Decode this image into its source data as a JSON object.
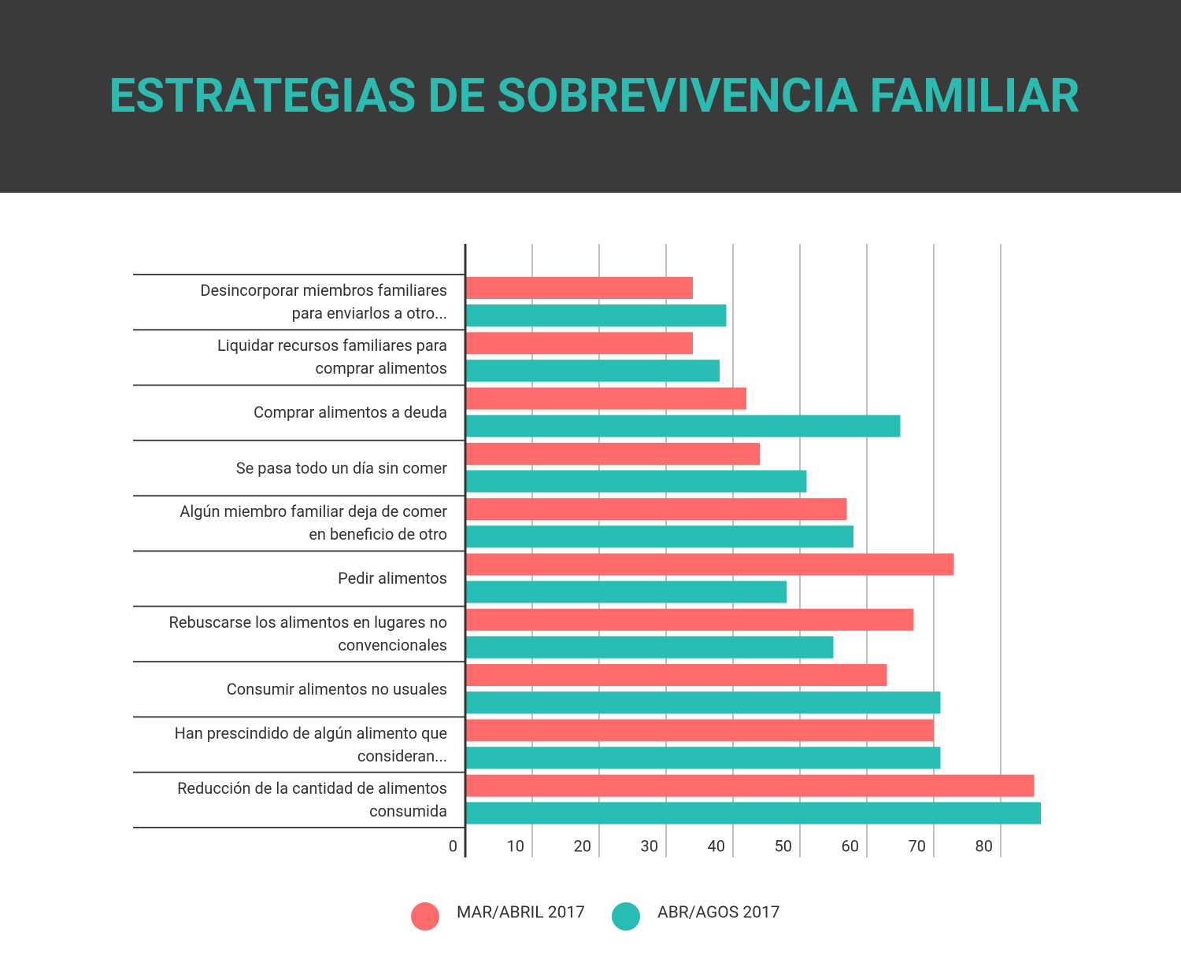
{
  "chart_data": {
    "type": "barh",
    "title": "ESTRATEGIAS DE SOBREVIVENCIA FAMILIAR",
    "categories": [
      "Desincorporar miembros familiares\npara enviarlos a otro...",
      "Liquidar recursos familiares para\ncomprar alimentos",
      "Comprar alimentos a deuda",
      "Se pasa todo un día sin comer",
      "Algún miembro familiar deja de comer\nen beneficio de otro",
      "Pedir alimentos",
      "Rebuscarse los alimentos en lugares no\nconvencionales",
      "Consumir alimentos no usuales",
      "Han prescindido de algún alimento que\nconsideran...",
      "Reducción de la cantidad de alimentos\nconsumida"
    ],
    "series": [
      {
        "name": "MAR/ABRIL 2017",
        "color": "#ff6b6b",
        "values": [
          34,
          34,
          42,
          44,
          57,
          73,
          67,
          63,
          70,
          85
        ]
      },
      {
        "name": "ABR/AGOS 2017",
        "color": "#26bdb5",
        "values": [
          39,
          38,
          65,
          51,
          58,
          48,
          55,
          71,
          71,
          86
        ]
      }
    ],
    "xlim": [
      0,
      88
    ],
    "xticks": [
      0,
      10,
      20,
      30,
      40,
      50,
      60,
      70,
      80
    ],
    "grid": true,
    "legend": "bottom"
  }
}
